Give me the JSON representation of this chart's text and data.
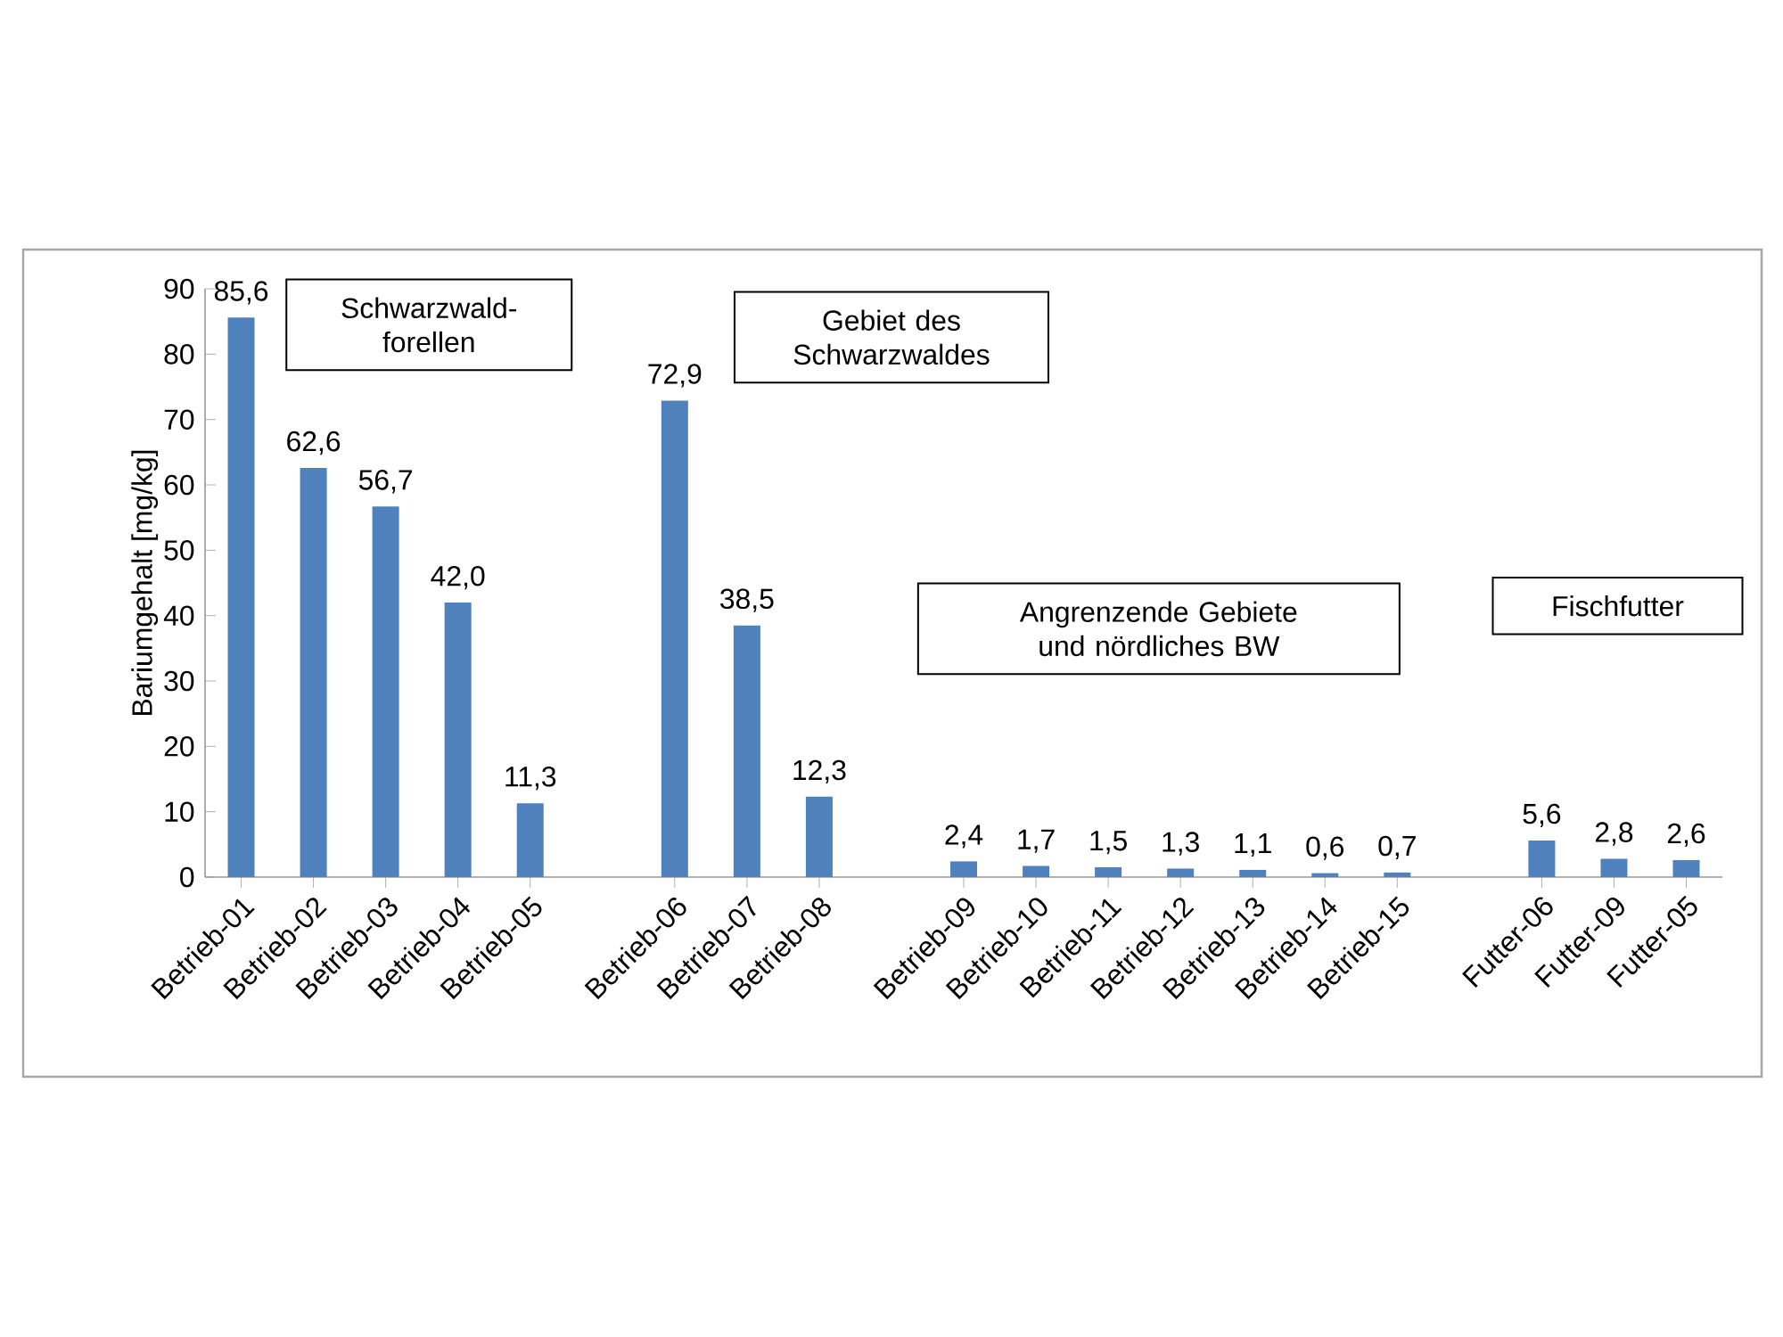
{
  "chart_data": {
    "type": "bar",
    "ylabel": "Bariumgehalt  [mg/kg]",
    "categories": [
      "Betrieb-01",
      "Betrieb-02",
      "Betrieb-03",
      "Betrieb-04",
      "Betrieb-05",
      null,
      "Betrieb-06",
      "Betrieb-07",
      "Betrieb-08",
      null,
      "Betrieb-09",
      "Betrieb-10",
      "Betrieb-11",
      "Betrieb-12",
      "Betrieb-13",
      "Betrieb-14",
      "Betrieb-15",
      null,
      "Futter-06",
      "Futter-09",
      "Futter-05"
    ],
    "values": [
      85.6,
      62.6,
      56.7,
      42.0,
      11.3,
      null,
      72.9,
      38.5,
      12.3,
      null,
      2.4,
      1.7,
      1.5,
      1.3,
      1.1,
      0.6,
      0.7,
      null,
      5.6,
      2.8,
      2.6
    ],
    "value_labels": [
      "85,6",
      "62,6",
      "56,7",
      "42,0",
      "11,3",
      null,
      "72,9",
      "38,5",
      "12,3",
      null,
      "2,4",
      "1,7",
      "1,5",
      "1,3",
      "1,1",
      "0,6",
      "0,7",
      null,
      "5,6",
      "2,8",
      "2,6"
    ],
    "color": "#4f81bd",
    "ylim": [
      0,
      90
    ],
    "yticks": [
      0,
      10,
      20,
      30,
      40,
      50,
      60,
      70,
      80,
      90
    ],
    "grid": false,
    "annotations": [
      "Schwarzwald-forellen",
      "Gebiet des Schwarzwaldes",
      "Angrenzende Gebiete und nördliches BW",
      "Fischfutter"
    ]
  }
}
